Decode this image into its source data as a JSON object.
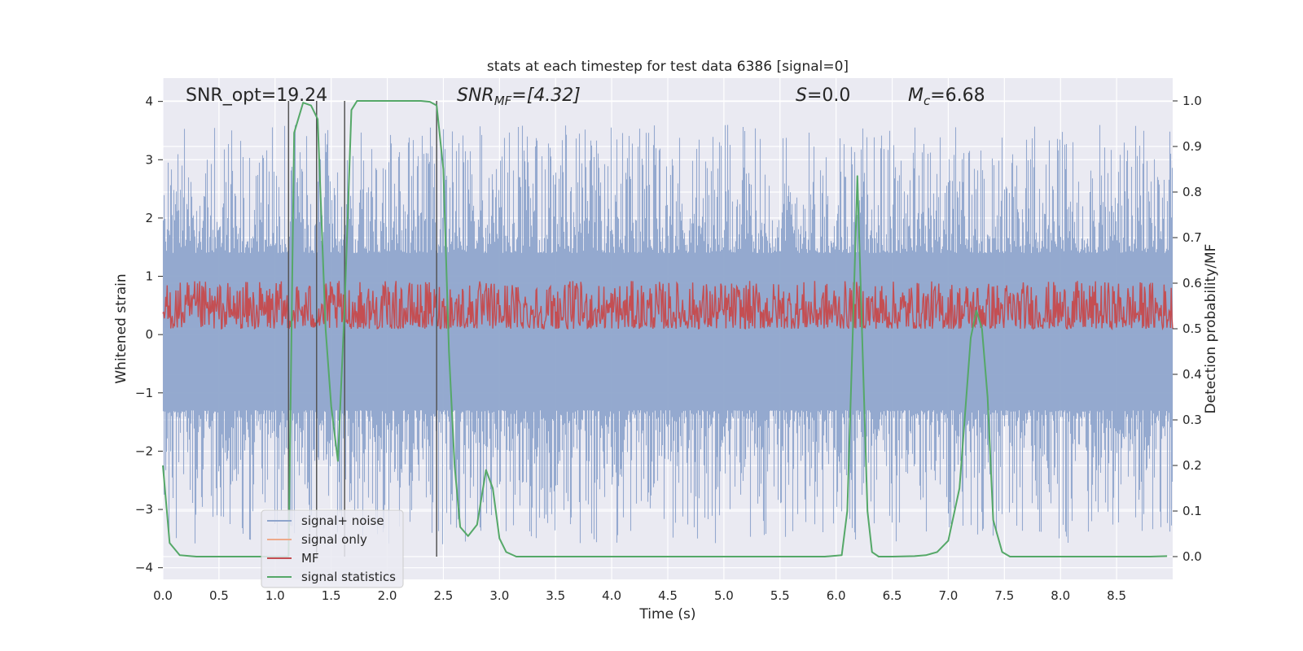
{
  "chart_data": {
    "type": "line",
    "title": "stats at each timestep for test data 6386 [signal=0]",
    "xlabel": "Time (s)",
    "ylabel_left": "Whitened strain",
    "ylabel_right": "Detection probability/MF",
    "xlim": [
      0.0,
      9.0
    ],
    "ylim_left": [
      -4.2,
      4.4
    ],
    "ylim_right": [
      -0.05,
      1.05
    ],
    "x_ticks": [
      "0.0",
      "0.5",
      "1.0",
      "1.5",
      "2.0",
      "2.5",
      "3.0",
      "3.5",
      "4.0",
      "4.5",
      "5.0",
      "5.5",
      "6.0",
      "6.5",
      "7.0",
      "7.5",
      "8.0",
      "8.5"
    ],
    "x_tick_values": [
      0.0,
      0.5,
      1.0,
      1.5,
      2.0,
      2.5,
      3.0,
      3.5,
      4.0,
      4.5,
      5.0,
      5.5,
      6.0,
      6.5,
      7.0,
      7.5,
      8.0,
      8.5
    ],
    "y_left_ticks": [
      "4",
      "3",
      "2",
      "1",
      "0",
      "−1",
      "−2",
      "−3",
      "−4"
    ],
    "y_left_tick_values": [
      4,
      3,
      2,
      1,
      0,
      -1,
      -2,
      -3,
      -4
    ],
    "y_right_ticks": [
      "1.0",
      "0.9",
      "0.8",
      "0.7",
      "0.6",
      "0.5",
      "0.4",
      "0.3",
      "0.2",
      "0.1",
      "0.0"
    ],
    "y_right_tick_values": [
      1.0,
      0.9,
      0.8,
      0.7,
      0.6,
      0.5,
      0.4,
      0.3,
      0.2,
      0.1,
      0.0
    ],
    "annotations": {
      "snr_opt": "SNR_opt=19.24",
      "snr_mf_base": "SNR",
      "snr_mf_sub": "MF",
      "snr_mf_rest": "=[4.32]",
      "s_var": "S",
      "s_rest": "=0.0",
      "mc_var": "M",
      "mc_sub": "c",
      "mc_rest": "=6.68"
    },
    "legend": {
      "position": "lower-left",
      "entries": [
        "signal+ noise",
        "signal only",
        "MF",
        "signal statistics"
      ]
    },
    "vertical_markers": [
      1.12,
      1.37,
      1.62,
      2.44
    ],
    "series": [
      {
        "name": "signal+ noise",
        "axis": "left",
        "color": "#8fa5cc",
        "description": "whitened strain noise spanning roughly -3.8 to 4.0 across 0–9 s"
      },
      {
        "name": "signal only",
        "axis": "left",
        "color": "#eeaa8a",
        "values": []
      },
      {
        "name": "MF",
        "axis": "right",
        "color": "#c44e52",
        "description": "matched filter output fluctuating between 0.5 and ~0.61"
      },
      {
        "name": "signal statistics",
        "axis": "right",
        "color": "#55a868",
        "x": [
          0.0,
          0.06,
          0.15,
          0.3,
          0.6,
          0.9,
          1.05,
          1.12,
          1.17,
          1.25,
          1.32,
          1.38,
          1.45,
          1.5,
          1.56,
          1.62,
          1.68,
          1.73,
          1.8,
          2.0,
          2.3,
          2.38,
          2.44,
          2.5,
          2.55,
          2.6,
          2.65,
          2.72,
          2.8,
          2.88,
          2.94,
          3.0,
          3.06,
          3.15,
          3.4,
          4.0,
          4.6,
          5.0,
          5.5,
          5.9,
          6.05,
          6.1,
          6.15,
          6.19,
          6.23,
          6.28,
          6.32,
          6.38,
          6.5,
          6.7,
          6.8,
          6.9,
          7.0,
          7.1,
          7.2,
          7.25,
          7.3,
          7.35,
          7.4,
          7.48,
          7.55,
          7.7,
          8.0,
          8.4,
          8.8,
          8.95
        ],
        "values": [
          0.2,
          0.03,
          0.003,
          0.0,
          0.0,
          0.0,
          0.0,
          0.0,
          0.93,
          0.996,
          0.99,
          0.96,
          0.5,
          0.33,
          0.21,
          0.55,
          0.98,
          1.0,
          1.0,
          1.0,
          1.0,
          0.998,
          0.99,
          0.85,
          0.45,
          0.2,
          0.065,
          0.045,
          0.07,
          0.19,
          0.15,
          0.04,
          0.01,
          0.0,
          0.0,
          0.0,
          0.0,
          0.0,
          0.0,
          0.0,
          0.003,
          0.1,
          0.5,
          0.835,
          0.5,
          0.1,
          0.01,
          0.0,
          0.0,
          0.001,
          0.003,
          0.01,
          0.035,
          0.15,
          0.48,
          0.54,
          0.5,
          0.35,
          0.08,
          0.01,
          0.0,
          0.0,
          0.0,
          0.0,
          0.0,
          0.001
        ]
      }
    ],
    "colors": {
      "background": "#eaeaf2",
      "grid": "#ffffff",
      "marker": "#555555",
      "text": "#262626"
    }
  }
}
